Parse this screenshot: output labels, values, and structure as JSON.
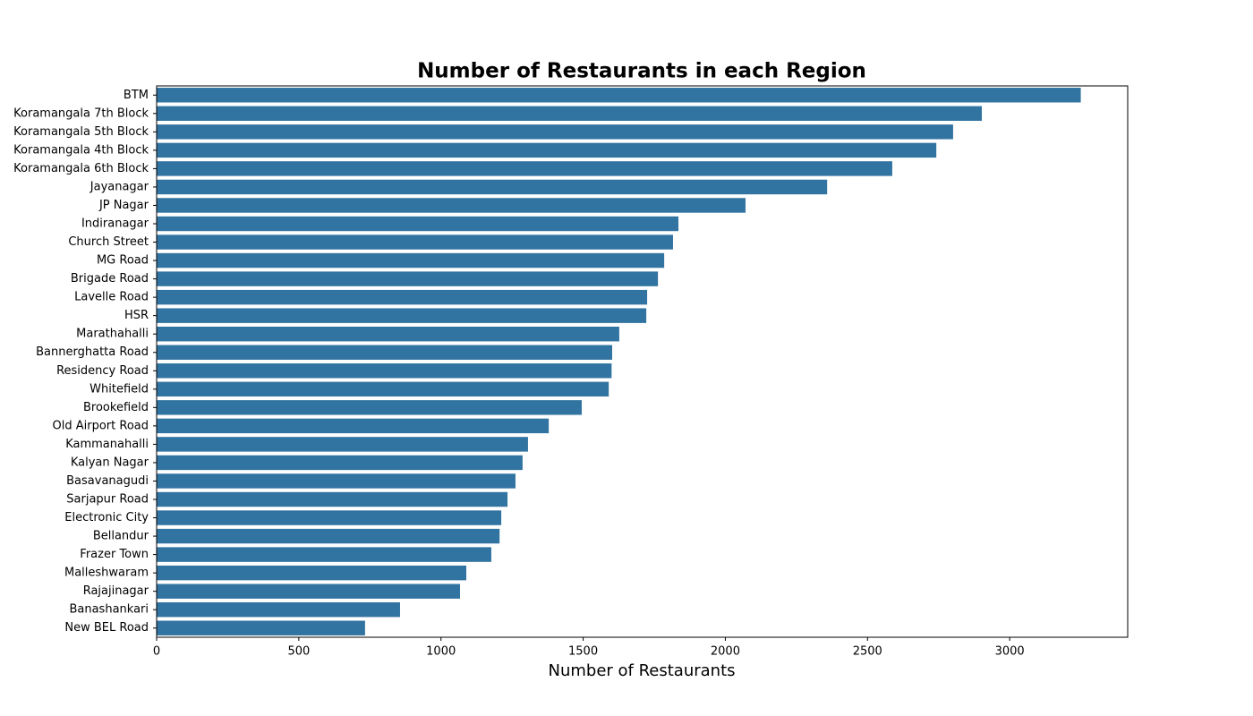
{
  "chart_data": {
    "type": "bar",
    "orientation": "horizontal",
    "title": "Number of Restaurants in each Region",
    "x_label": "Number of Restaurants",
    "color": "#3274a1",
    "categories": [
      "BTM",
      "Koramangala 7th Block",
      "Koramangala 5th Block",
      "Koramangala 4th Block",
      "Koramangala 6th Block",
      "Jayanagar",
      "JP Nagar",
      "Indiranagar",
      "Church Street",
      "MG Road",
      "Brigade Road",
      "Lavelle Road",
      "HSR",
      "Marathahalli",
      "Bannerghatta Road",
      "Residency Road",
      "Whitefield",
      "Brookefield",
      "Old Airport Road",
      "Kammanahalli",
      "Kalyan Nagar",
      "Basavanagudi",
      "Sarjapur Road",
      "Electronic City",
      "Bellandur",
      "Frazer Town",
      "Malleshwaram",
      "Rajajinagar",
      "Banashankari",
      "New BEL Road"
    ],
    "values": [
      3250,
      2902,
      2801,
      2742,
      2587,
      2358,
      2071,
      1835,
      1816,
      1785,
      1763,
      1725,
      1722,
      1627,
      1602,
      1600,
      1590,
      1495,
      1379,
      1306,
      1287,
      1262,
      1234,
      1212,
      1206,
      1177,
      1089,
      1067,
      856,
      733
    ],
    "xlim": [
      0,
      3415
    ],
    "xticks": [
      0,
      500,
      1000,
      1500,
      2000,
      2500,
      3000
    ]
  }
}
